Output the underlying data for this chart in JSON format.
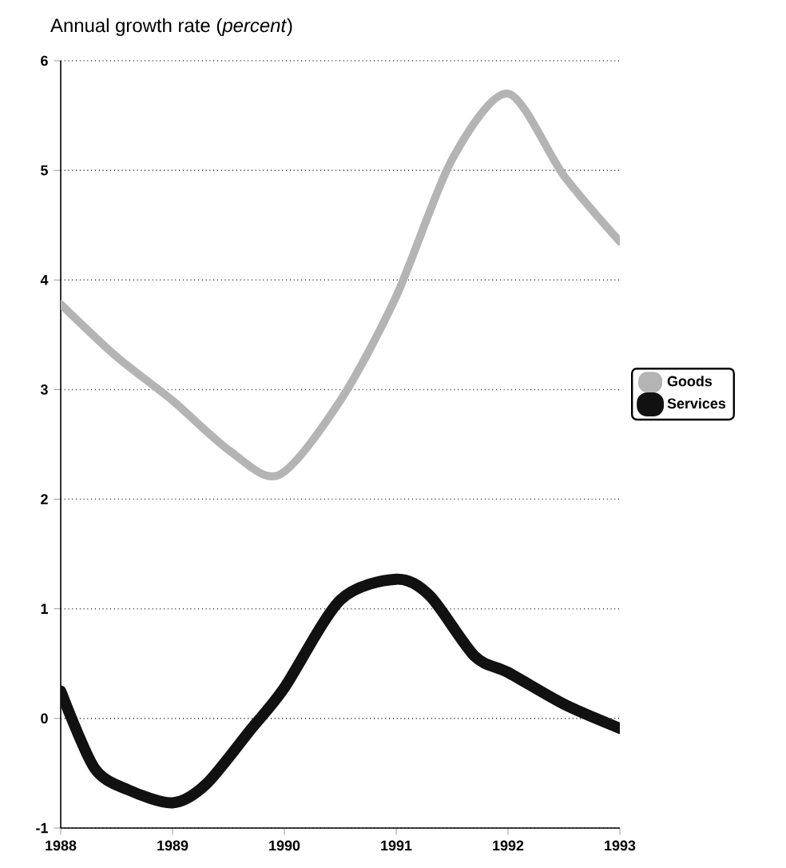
{
  "chart_data": {
    "type": "line",
    "title": "Annual growth rate (*percent*)",
    "xlim": [
      1988,
      1993
    ],
    "xticks": [
      1988,
      1989,
      1990,
      1991,
      1992,
      1993
    ],
    "ylim": [
      -1,
      6
    ],
    "yticks": [
      -1,
      0,
      1,
      2,
      3,
      4,
      5,
      6
    ],
    "grid": "y",
    "legend": "right",
    "line_style": "solid",
    "marker": "none",
    "series": [
      {
        "name": "Goods",
        "color": "#b4b4b4",
        "x": [
          1988,
          1988.5,
          1989,
          1989.5,
          1989.95,
          1990.5,
          1991,
          1991.5,
          1992,
          1992.5,
          1993
        ],
        "values": [
          3.78,
          3.3,
          2.9,
          2.45,
          2.22,
          2.9,
          3.85,
          5.1,
          5.7,
          4.95,
          4.35
        ]
      },
      {
        "name": "Services",
        "color": "#111111",
        "x": [
          1988,
          1988.3,
          1988.6,
          1989,
          1989.3,
          1989.7,
          1990,
          1990.5,
          1991,
          1991.3,
          1991.7,
          1992,
          1992.5,
          1993
        ],
        "values": [
          0.25,
          -0.45,
          -0.65,
          -0.77,
          -0.6,
          -0.1,
          0.28,
          1.08,
          1.27,
          1.12,
          0.57,
          0.42,
          0.13,
          -0.09
        ]
      }
    ]
  }
}
